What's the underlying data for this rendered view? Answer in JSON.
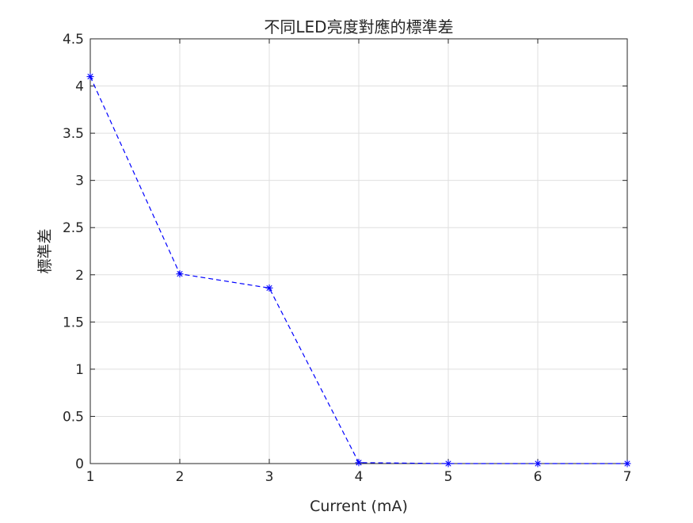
{
  "chart_data": {
    "type": "line",
    "title": "不同LED亮度對應的標準差",
    "xlabel": "Current (mA)",
    "ylabel": "標準差",
    "xlim": [
      1,
      7
    ],
    "ylim": [
      0,
      4.5
    ],
    "x_ticks": [
      "1",
      "2",
      "3",
      "4",
      "5",
      "6",
      "7"
    ],
    "y_ticks": [
      "0",
      "0.5",
      "1",
      "1.5",
      "2",
      "2.5",
      "3",
      "3.5",
      "4",
      "4.5"
    ],
    "grid": true,
    "legend": "none",
    "series": [
      {
        "color": "#0000ff",
        "line_style": "dashed",
        "marker": "asterisk",
        "x": [
          1,
          2,
          3,
          4,
          5,
          6,
          7
        ],
        "y": [
          4.1,
          2.01,
          1.86,
          0.01,
          0.0,
          0.0,
          0.0
        ]
      }
    ]
  }
}
